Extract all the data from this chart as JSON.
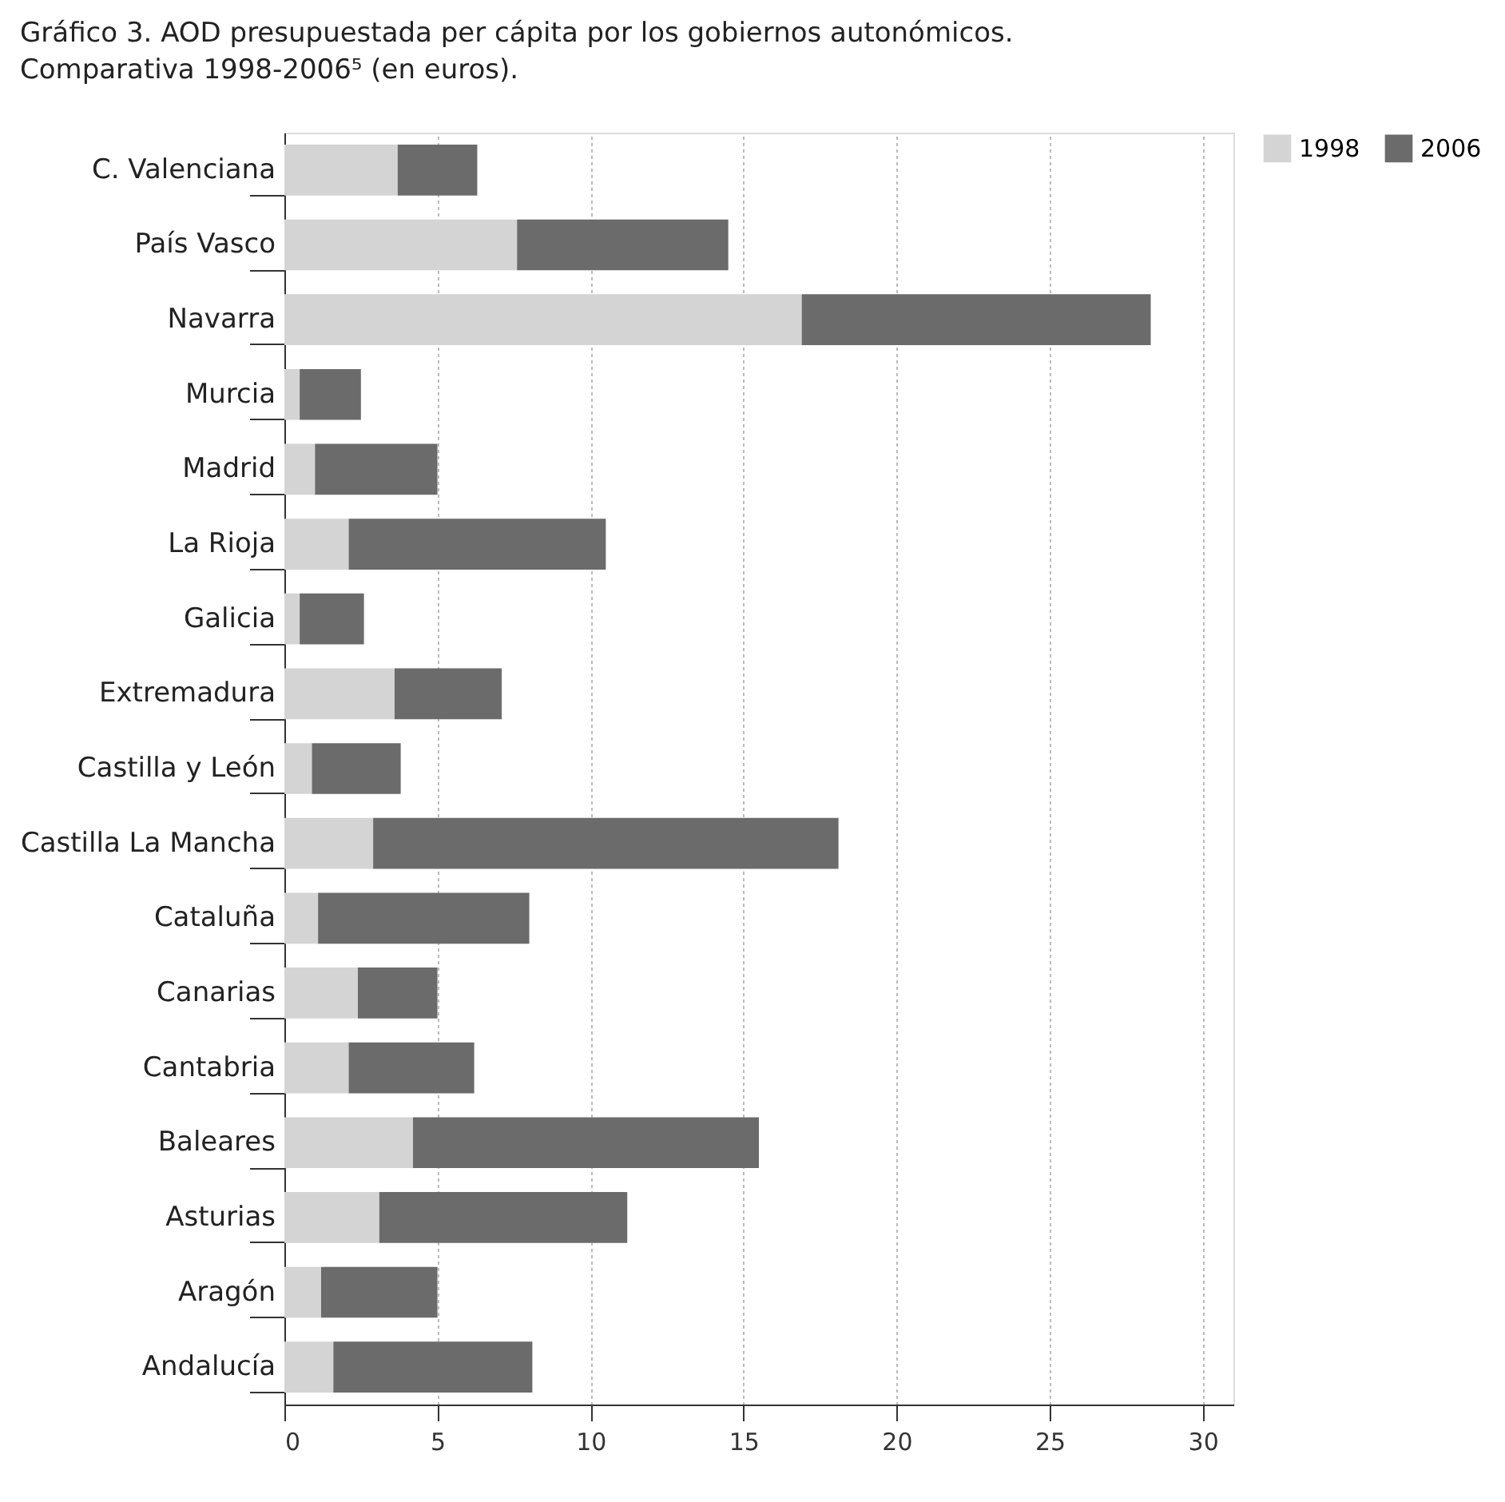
{
  "chart_data": {
    "type": "bar",
    "orientation": "horizontal",
    "stacked": true,
    "title": "Gráfico 3. AOD presupuestada per cápita por los gobiernos autonómicos.",
    "subtitle": "Comparativa 1998-2006⁵ (en euros).",
    "categories": [
      "C. Valenciana",
      "País Vasco",
      "Navarra",
      "Murcia",
      "Madrid",
      "La Rioja",
      "Galicia",
      "Extremadura",
      "Castilla y León",
      "Castilla La Mancha",
      "Cataluña",
      "Canarias",
      "Cantabria",
      "Baleares",
      "Asturias",
      "Aragón",
      "Andalucía"
    ],
    "series": [
      {
        "name": "1998",
        "color": "#d4d4d4",
        "values": [
          3.7,
          7.6,
          16.9,
          0.5,
          1.0,
          2.1,
          0.5,
          3.6,
          0.9,
          2.9,
          1.1,
          2.4,
          2.1,
          4.2,
          3.1,
          1.2,
          1.6
        ]
      },
      {
        "name": "2006",
        "color": "#6b6b6b",
        "values": [
          2.6,
          6.9,
          11.4,
          2.0,
          4.0,
          8.4,
          2.1,
          3.5,
          2.9,
          15.2,
          6.9,
          2.6,
          4.1,
          11.3,
          8.1,
          3.8,
          6.5
        ]
      }
    ],
    "xlim": [
      0,
      31
    ],
    "xticks": [
      0,
      5,
      10,
      15,
      20,
      25,
      30
    ],
    "grid": "x",
    "legend": "right"
  }
}
